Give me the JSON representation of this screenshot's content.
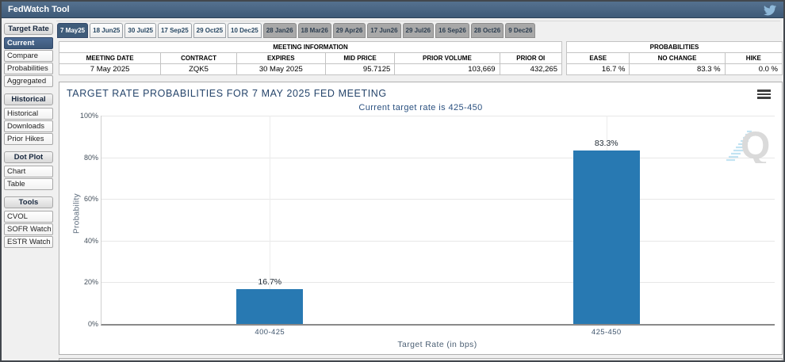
{
  "header": {
    "title": "FedWatch Tool"
  },
  "icons": {
    "header_social": "twitter-bird",
    "chart_menu": "hamburger-menu",
    "chart_watermark": "quikstrike-q"
  },
  "tabs": [
    {
      "label": "7 May25",
      "state": "selected"
    },
    {
      "label": "18 Jun25",
      "state": "active"
    },
    {
      "label": "30 Jul25",
      "state": "active"
    },
    {
      "label": "17 Sep25",
      "state": "active"
    },
    {
      "label": "29 Oct25",
      "state": "active"
    },
    {
      "label": "10 Dec25",
      "state": "active"
    },
    {
      "label": "28 Jan26",
      "state": "inactive"
    },
    {
      "label": "18 Mar26",
      "state": "inactive"
    },
    {
      "label": "29 Apr26",
      "state": "inactive"
    },
    {
      "label": "17 Jun26",
      "state": "inactive"
    },
    {
      "label": "29 Jul26",
      "state": "inactive"
    },
    {
      "label": "16 Sep26",
      "state": "inactive"
    },
    {
      "label": "28 Oct26",
      "state": "inactive"
    },
    {
      "label": "9 Dec26",
      "state": "inactive"
    }
  ],
  "sidebar": {
    "sections": [
      {
        "header": "Target Rate",
        "items": [
          {
            "label": "Current",
            "selected": true
          },
          {
            "label": "Compare"
          },
          {
            "label": "Probabilities"
          },
          {
            "label": "Aggregated"
          }
        ]
      },
      {
        "header": "Historical",
        "items": [
          {
            "label": "Historical"
          },
          {
            "label": "Downloads"
          },
          {
            "label": "Prior Hikes"
          }
        ]
      },
      {
        "header": "Dot Plot",
        "items": [
          {
            "label": "Chart"
          },
          {
            "label": "Table"
          }
        ]
      },
      {
        "header": "Tools",
        "items": [
          {
            "label": "CVOL"
          },
          {
            "label": "SOFR Watch"
          },
          {
            "label": "ESTR Watch"
          }
        ]
      }
    ]
  },
  "meeting_information": {
    "title": "MEETING INFORMATION",
    "columns": [
      "MEETING DATE",
      "CONTRACT",
      "EXPIRES",
      "MID PRICE",
      "PRIOR VOLUME",
      "PRIOR OI"
    ],
    "values": [
      "7 May 2025",
      "ZQK5",
      "30 May 2025",
      "95.7125",
      "103,669",
      "432,265"
    ],
    "value_align": [
      "center",
      "center",
      "center",
      "right",
      "right",
      "right"
    ]
  },
  "probabilities": {
    "title": "PROBABILITIES",
    "columns": [
      "EASE",
      "NO CHANGE",
      "HIKE"
    ],
    "values": [
      "16.7 %",
      "83.3 %",
      "0.0 %"
    ],
    "value_align": [
      "right",
      "right",
      "right"
    ]
  },
  "chart_data": {
    "type": "bar",
    "title": "TARGET RATE PROBABILITIES FOR 7 MAY 2025 FED MEETING",
    "subtitle": "Current target rate is 425-450",
    "categories": [
      "400-425",
      "425-450"
    ],
    "values": [
      16.7,
      83.3
    ],
    "value_labels": [
      "16.7%",
      "83.3%"
    ],
    "xlabel": "Target Rate (in bps)",
    "ylabel": "Probability",
    "ylim": [
      0,
      100
    ],
    "ytick_labels": [
      "0%",
      "20%",
      "40%",
      "60%",
      "80%",
      "100%"
    ],
    "grid": true,
    "legend": "none",
    "bar_color": "#2879b2"
  },
  "colors": {
    "titlebar": "#3e5a78",
    "selected": "#3f5c7a",
    "bar": "#2879b2",
    "chart_title_text": "#26456b",
    "chart_subtitle_text": "#2b5180"
  }
}
